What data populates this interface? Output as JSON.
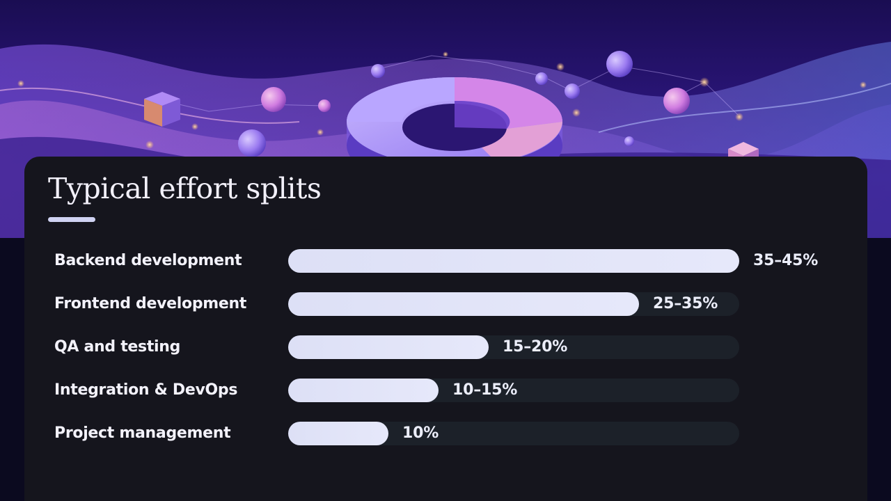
{
  "card": {
    "title": "Typical effort splits"
  },
  "chart_data": {
    "type": "bar",
    "orientation": "horizontal",
    "title": "Typical effort splits",
    "categories": [
      "Backend development",
      "Frontend development",
      "QA and testing",
      "Integration & DevOps",
      "Project management"
    ],
    "value_labels": [
      "35–45%",
      "25–35%",
      "15–20%",
      "10–15%",
      "10%"
    ],
    "values": [
      45,
      35,
      20,
      15,
      10
    ],
    "xlim": [
      0,
      45
    ],
    "unit": "%",
    "grid": false,
    "legend": "none",
    "colors": {
      "bar": "#dde0f6",
      "track": "#1c2129",
      "card": "#15151d",
      "hero": "#2a1578"
    }
  }
}
